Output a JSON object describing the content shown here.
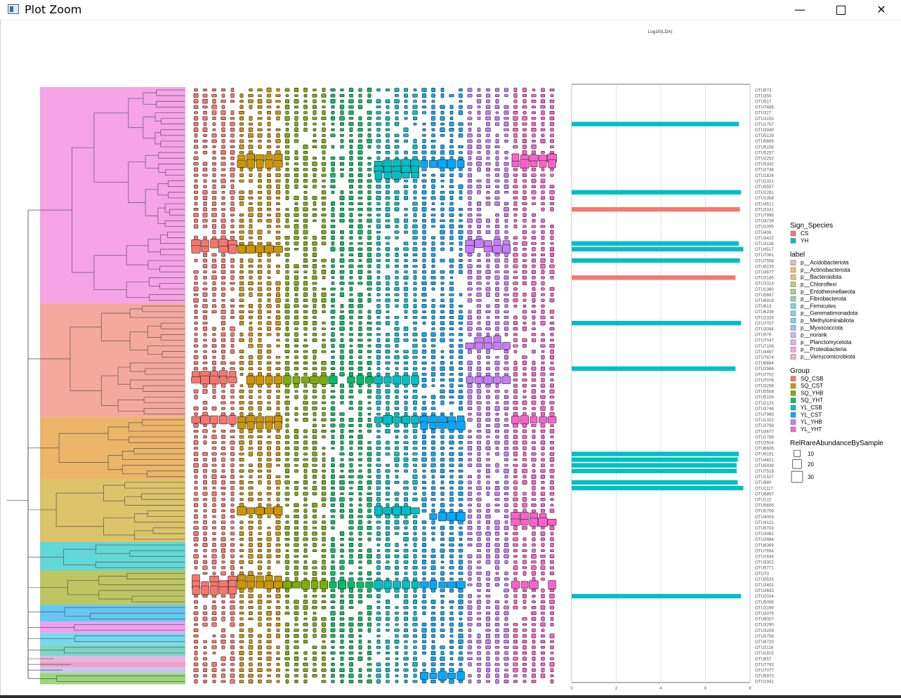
{
  "window": {
    "title": "Plot Zoom",
    "buttons": {
      "minimize": "—",
      "close": "✕"
    }
  },
  "chart_data": {
    "type": "bar",
    "title": "Log10(LDA)",
    "xlim": [
      0,
      8
    ],
    "xticks": [
      "0",
      "2",
      "4",
      "6",
      "8"
    ],
    "grid": true,
    "categories": [
      "OTU673",
      "OTU350",
      "OTU517",
      "OTU7486",
      "OTU327",
      "OTU3155",
      "OTU1757",
      "OTU3940",
      "OTU5128",
      "OTU5689",
      "OTU5156",
      "OTU5257",
      "OTU2252",
      "OTU5342",
      "OTU2748",
      "OTU1826",
      "OTU1321",
      "OTU5557",
      "OTU1281",
      "OTU1358",
      "OTU4521",
      "OTU3331",
      "OTU7996",
      "OTU4739",
      "OTU1095",
      "OTU436",
      "OTU3422",
      "OTU3136",
      "OTU4517",
      "OTU7081",
      "OTU7558",
      "OTU6235",
      "OTU4677",
      "OTU3185",
      "OTU3313",
      "OTU1360",
      "OTU5667",
      "OTU6918",
      "OTU613",
      "OTU6236",
      "OTU2326",
      "OTU7707",
      "OTU3084",
      "OTU978",
      "OTU7047",
      "OTU7109",
      "OTU4487",
      "OTU7874",
      "OTU6664",
      "OTU2986",
      "OTU7702",
      "OTU7076",
      "OTU3298",
      "OTU5558",
      "OTU5104",
      "OTU2125",
      "OTU3748",
      "OTU7969",
      "OTU1322",
      "OTU3799",
      "OTU3677",
      "OTU1788",
      "OTU2504",
      "OTU6605",
      "OTU6191",
      "OTU4821",
      "OTU5938",
      "OTU7518",
      "OTU1527",
      "OTU980",
      "OTU1117",
      "OTU6857",
      "OTU122",
      "OTU5656",
      "OTU5708",
      "OTU4003",
      "OTU4121",
      "OTU5703",
      "OTU3981",
      "OTU2684",
      "OTU6369",
      "OTU7694",
      "OTU1634",
      "OTU3302",
      "OTU5771",
      "OTU70",
      "OTU5533",
      "OTU3402",
      "OTU3693",
      "OTU2024",
      "OTU5096",
      "OTU3199",
      "OTU4379",
      "OTU6007",
      "OTU3290",
      "OTU3209",
      "OTU5756",
      "OTU6720",
      "OTU2116",
      "OTU1815",
      "OTU657",
      "OTU7783",
      "OTU7077",
      "OTU5973",
      "OTU1941"
    ],
    "series": [
      {
        "name": "CS",
        "color": "#F8766D",
        "bars": [
          {
            "otu": "OTU3331",
            "value": 7.55
          },
          {
            "otu": "OTU3185",
            "value": 7.35
          }
        ]
      },
      {
        "name": "YH",
        "color": "#00BFC4",
        "bars": [
          {
            "otu": "OTU1757",
            "value": 7.5
          },
          {
            "otu": "OTU1281",
            "value": 7.6
          },
          {
            "otu": "OTU3136",
            "value": 7.5
          },
          {
            "otu": "OTU4517",
            "value": 7.7
          },
          {
            "otu": "OTU7558",
            "value": 7.55
          },
          {
            "otu": "OTU7707",
            "value": 7.6
          },
          {
            "otu": "OTU2986",
            "value": 7.35
          },
          {
            "otu": "OTU6191",
            "value": 7.5
          },
          {
            "otu": "OTU4821",
            "value": 7.45
          },
          {
            "otu": "OTU5938",
            "value": 7.4
          },
          {
            "otu": "OTU7518",
            "value": 7.4
          },
          {
            "otu": "OTU980",
            "value": 7.45
          },
          {
            "otu": "OTU1117",
            "value": 7.7
          },
          {
            "otu": "OTU2024",
            "value": 7.6
          }
        ]
      }
    ],
    "tree_clades": [
      {
        "phylum": "p__Proteobacteria",
        "from": "OTU673",
        "to": "OTU6918",
        "color": "#F7A3E8"
      },
      {
        "phylum": "p__Acidobacteriota",
        "from": "OTU613",
        "to": "OTU7969",
        "color": "#F5A99E"
      },
      {
        "phylum": "p__Actinobacteriota",
        "from": "OTU1322",
        "to": "OTU1527",
        "color": "#EDB568"
      },
      {
        "phylum": "p__Bacteroidota",
        "from": "OTU980",
        "to": "OTU2684",
        "color": "#DCC46A"
      },
      {
        "phylum": "p__Firmicutes",
        "from": "OTU6369",
        "to": "OTU5771",
        "color": "#62D8D8"
      },
      {
        "phylum": "p__Chloroflexi",
        "from": "OTU70",
        "to": "OTU5096",
        "color": "#BFC661"
      },
      {
        "phylum": "p__Methylomirabilota",
        "from": "OTU3199",
        "to": "OTU6007",
        "color": "#66C7F5"
      },
      {
        "phylum": "p__Planctomycetota",
        "from": "OTU3290",
        "to": "OTU3209",
        "color": "#F0A0F0"
      },
      {
        "phylum": "p__Fibrobacterota",
        "from": "OTU5756",
        "to": "OTU6720",
        "color": "#73D9F0"
      },
      {
        "phylum": "p__Gemmatimonadota",
        "from": "OTU2116",
        "to": "OTU1815",
        "color": "#7ED8C8"
      },
      {
        "phylum": "p__norank",
        "from": "OTU657",
        "to": "OTU657",
        "color": "#E6B7E0"
      },
      {
        "phylum": "p__Verrucomicrobiota",
        "from": "OTU7783",
        "to": "OTU7783",
        "color": "#F3A0C8"
      },
      {
        "phylum": "p__Myxococcota",
        "from": "OTU7077",
        "to": "OTU7077",
        "color": "#C3C9F2"
      },
      {
        "phylum": "p__Entotheonellaeota",
        "from": "OTU5973",
        "to": "OTU1941",
        "color": "#9AD77A"
      }
    ],
    "groups": [
      {
        "name": "SQ_CSB",
        "color": "#F8766D"
      },
      {
        "name": "SQ_CST",
        "color": "#CD9600"
      },
      {
        "name": "SQ_YHB",
        "color": "#7CAE00"
      },
      {
        "name": "SQ_YHT",
        "color": "#00BE67"
      },
      {
        "name": "YL_CSB",
        "color": "#00BFC4"
      },
      {
        "name": "YL_CST",
        "color": "#00A9FF"
      },
      {
        "name": "YL_YHB",
        "color": "#C77CFF"
      },
      {
        "name": "YL_YHT",
        "color": "#FF61CC"
      }
    ],
    "samples_per_group": 5
  },
  "legends": {
    "sign_species": {
      "title": "Sign_Species",
      "items": [
        {
          "label": "CS",
          "color": "#F8766D"
        },
        {
          "label": "YH",
          "color": "#00BFC4"
        }
      ]
    },
    "label": {
      "title": "label",
      "items": [
        {
          "label": "p__Acidobacteriota",
          "color": "#F8B4AC"
        },
        {
          "label": "p__Actinobacteriota",
          "color": "#EDBE7E"
        },
        {
          "label": "p__Bacteroidota",
          "color": "#DCC87A"
        },
        {
          "label": "p__Chloroflexi",
          "color": "#C6CC76"
        },
        {
          "label": "p__Entotheonellaeota",
          "color": "#A7D08A"
        },
        {
          "label": "p__Fibrobacterota",
          "color": "#8ED6A8"
        },
        {
          "label": "p__Firmicutes",
          "color": "#7FD8C8"
        },
        {
          "label": "p__Gemmatimonadota",
          "color": "#7AD6D8"
        },
        {
          "label": "p__Methylomirabilota",
          "color": "#82CFEF"
        },
        {
          "label": "p__Myxococcota",
          "color": "#9CC3F5"
        },
        {
          "label": "p__norank",
          "color": "#C2BDF6"
        },
        {
          "label": "p__Planctomycetota",
          "color": "#E1B1F3"
        },
        {
          "label": "p__Proteobacteria",
          "color": "#F3ACE4"
        },
        {
          "label": "p__Verrucomicrobiota",
          "color": "#F7ADCC"
        }
      ]
    },
    "group": {
      "title": "Group",
      "items": [
        {
          "label": "SQ_CSB",
          "color": "#F8766D"
        },
        {
          "label": "SQ_CST",
          "color": "#CD9600"
        },
        {
          "label": "SQ_YHB",
          "color": "#7CAE00"
        },
        {
          "label": "SQ_YHT",
          "color": "#00BE67"
        },
        {
          "label": "YL_CSB",
          "color": "#00BFC4"
        },
        {
          "label": "YL_CST",
          "color": "#00A9FF"
        },
        {
          "label": "YL_YHB",
          "color": "#C77CFF"
        },
        {
          "label": "YL_YHT",
          "color": "#FF61CC"
        }
      ]
    },
    "size": {
      "title": "RelRareAbundanceBySample",
      "items": [
        {
          "label": "10",
          "value": 10
        },
        {
          "label": "20",
          "value": 20
        },
        {
          "label": "30",
          "value": 30
        }
      ]
    }
  }
}
